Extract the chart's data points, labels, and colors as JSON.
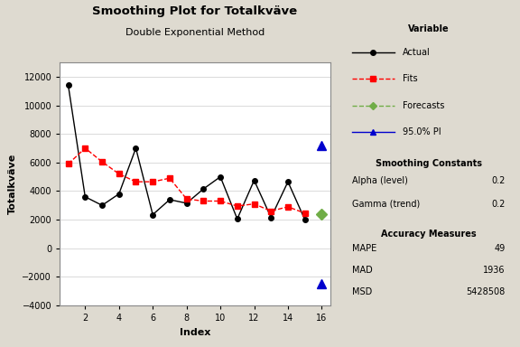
{
  "title": "Smoothing Plot for Totalkväve",
  "subtitle": "Double Exponential Method",
  "xlabel": "Index",
  "ylabel": "Totalkväve",
  "bg_color": "#dedad0",
  "plot_bg_color": "#ffffff",
  "actual_x": [
    1,
    2,
    3,
    4,
    5,
    6,
    7,
    8,
    9,
    10,
    11,
    12,
    13,
    14,
    15
  ],
  "actual_y": [
    11400,
    3600,
    3000,
    3800,
    7000,
    2350,
    3400,
    3150,
    4150,
    5000,
    2050,
    4750,
    2150,
    4650,
    2000
  ],
  "fits_x": [
    1,
    2,
    3,
    4,
    5,
    6,
    7,
    8,
    9,
    10,
    11,
    12,
    13,
    14,
    15
  ],
  "fits_y": [
    5900,
    7000,
    6050,
    5200,
    4650,
    4650,
    4900,
    3450,
    3300,
    3300,
    2950,
    3100,
    2600,
    2900,
    2450
  ],
  "forecast_x": [
    16
  ],
  "forecast_y": [
    2400
  ],
  "pi_upper_x": [
    16
  ],
  "pi_upper_y": [
    7200
  ],
  "pi_lower_x": [
    16
  ],
  "pi_lower_y": [
    -2500
  ],
  "ylim": [
    -4000,
    13000
  ],
  "xlim": [
    0.5,
    16.5
  ],
  "xticks": [
    2,
    4,
    6,
    8,
    10,
    12,
    14,
    16
  ],
  "yticks": [
    -4000,
    -2000,
    0,
    2000,
    4000,
    6000,
    8000,
    10000,
    12000
  ],
  "legend_variable": "Variable",
  "legend_actual": "Actual",
  "legend_fits": "Fits",
  "legend_forecasts": "Forecasts",
  "legend_pi": "95.0% PI",
  "smoothing_alpha": "0.2",
  "smoothing_gamma": "0.2",
  "mape": "49",
  "mad": "1936",
  "msd": "5428508"
}
